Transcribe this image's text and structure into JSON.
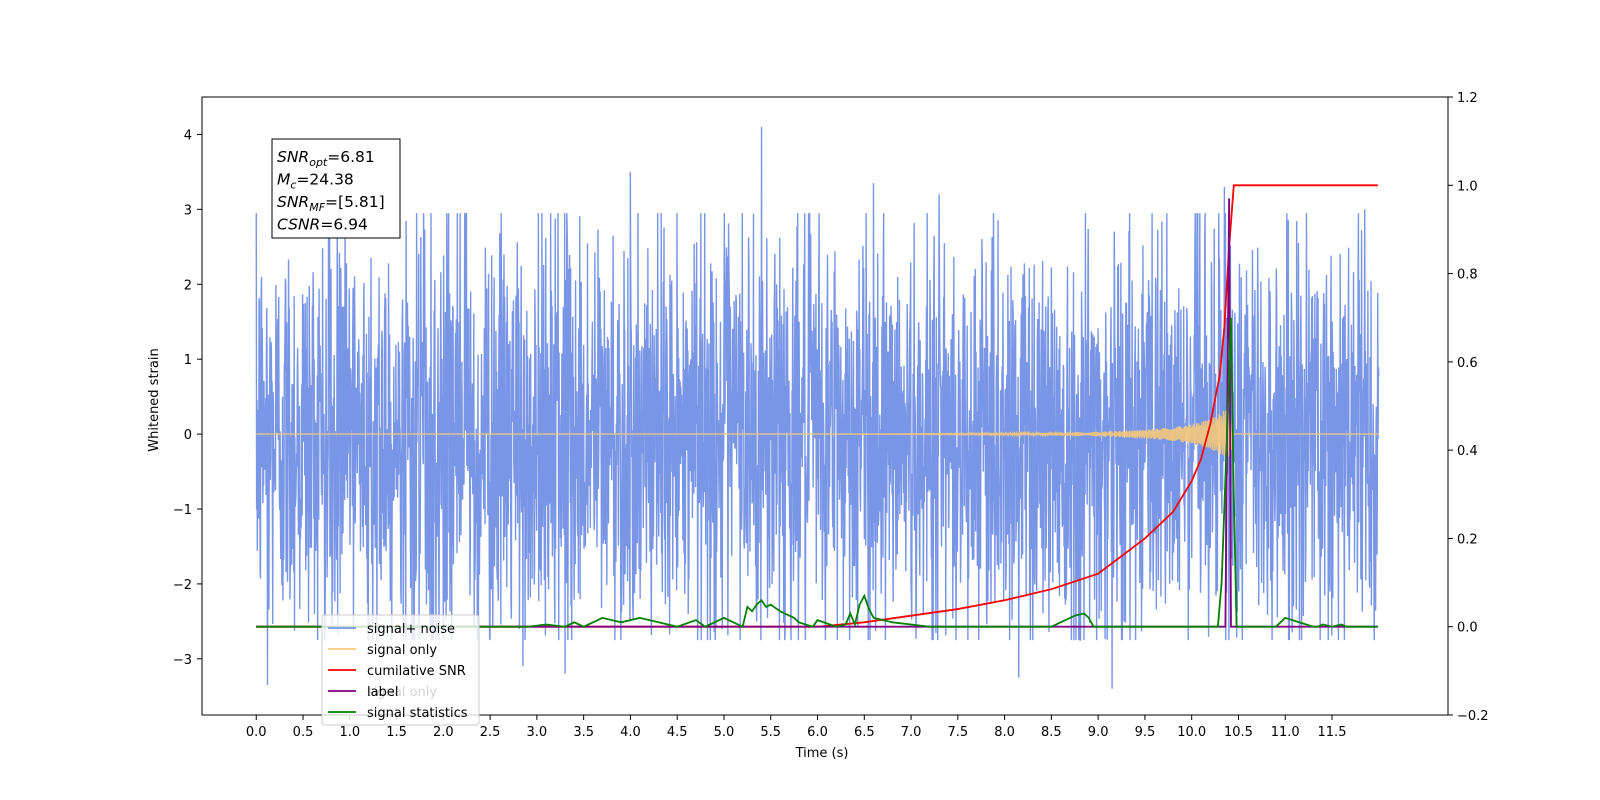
{
  "chart_data": {
    "type": "line",
    "title": "",
    "xlabel": "Time (s)",
    "ylabel_left": "Whitened strain",
    "ylabel_right": "",
    "xlim": [
      -0.58,
      12.74
    ],
    "ylim_left": [
      -3.75,
      4.5
    ],
    "ylim_right": [
      -0.2,
      1.2
    ],
    "x_ticks": [
      0.0,
      0.5,
      1.0,
      1.5,
      2.0,
      2.5,
      3.0,
      3.5,
      4.0,
      4.5,
      5.0,
      5.5,
      6.0,
      6.5,
      7.0,
      7.5,
      8.0,
      8.5,
      9.0,
      9.5,
      10.0,
      10.5,
      11.0,
      11.5
    ],
    "x_tick_labels": [
      "0.0",
      "0.5",
      "1.0",
      "1.5",
      "2.0",
      "2.5",
      "3.0",
      "3.5",
      "4.0",
      "4.5",
      "5.0",
      "5.5",
      "6.0",
      "6.5",
      "7.0",
      "7.5",
      "8.0",
      "8.5",
      "9.0",
      "9.5",
      "10.0",
      "10.5",
      "11.0",
      "11.5"
    ],
    "y_left_ticks": [
      -3,
      -2,
      -1,
      0,
      1,
      2,
      3,
      4
    ],
    "y_left_tick_labels": [
      "−3",
      "−2",
      "−1",
      "0",
      "1",
      "2",
      "3",
      "4"
    ],
    "y_right_ticks": [
      -0.2,
      0.0,
      0.2,
      0.4,
      0.6,
      0.8,
      1.0,
      1.2
    ],
    "y_right_tick_labels": [
      "−0.2",
      "0.0",
      "0.2",
      "0.4",
      "0.6",
      "0.8",
      "1.0",
      "1.2"
    ],
    "grid": false,
    "legend_position": "lower-left",
    "noise": {
      "x_range": [
        0.0,
        12.0
      ],
      "envelope_upper": 2.2,
      "envelope_lower": -2.0,
      "spikes": [
        {
          "x": 0.12,
          "y": -3.35
        },
        {
          "x": 2.85,
          "y": -3.1
        },
        {
          "x": 3.3,
          "y": -3.2
        },
        {
          "x": 4.0,
          "y": 3.5
        },
        {
          "x": 5.4,
          "y": 4.1
        },
        {
          "x": 6.6,
          "y": 3.35
        },
        {
          "x": 7.3,
          "y": 3.2
        },
        {
          "x": 8.15,
          "y": -3.25
        },
        {
          "x": 9.15,
          "y": -3.4
        },
        {
          "x": 10.35,
          "y": 3.3
        },
        {
          "x": 11.85,
          "y": 3.0
        }
      ]
    },
    "series": [
      {
        "name": "signal+ noise",
        "axis": "left",
        "color": "#7995e6",
        "values_description_free": true
      },
      {
        "name": "signal only",
        "axis": "left",
        "color": "#f5c87a",
        "envelope": {
          "x": [
            0.0,
            3.0,
            6.0,
            8.0,
            9.0,
            9.5,
            9.8,
            10.0,
            10.2,
            10.3,
            10.38,
            10.42,
            10.45
          ],
          "amplitude": [
            0.0,
            0.0,
            0.0,
            0.01,
            0.03,
            0.06,
            0.09,
            0.13,
            0.2,
            0.27,
            0.35,
            0.25,
            0.0
          ]
        }
      },
      {
        "name": "cumilative SNR",
        "axis": "right",
        "color": "#ff0000",
        "x": [
          0.0,
          6.0,
          6.5,
          7.0,
          7.5,
          8.0,
          8.5,
          9.0,
          9.5,
          9.8,
          10.0,
          10.1,
          10.2,
          10.3,
          10.35,
          10.4,
          10.45,
          11.0,
          11.5,
          11.99
        ],
        "values": [
          0.0,
          0.0,
          0.01,
          0.025,
          0.04,
          0.06,
          0.085,
          0.12,
          0.2,
          0.26,
          0.33,
          0.38,
          0.46,
          0.57,
          0.68,
          0.86,
          1.0,
          1.0,
          1.0,
          1.0
        ]
      },
      {
        "name": "label",
        "axis": "right",
        "color": "#800080",
        "x": [
          0.0,
          10.33,
          10.36,
          10.4,
          10.42,
          10.43,
          11.99
        ],
        "values": [
          0.0,
          0.0,
          0.0,
          0.97,
          0.0,
          0.0,
          0.0
        ]
      },
      {
        "name": "signal statistics",
        "axis": "right",
        "color": "#008000",
        "x": [
          0.0,
          2.5,
          2.9,
          3.1,
          3.3,
          3.4,
          3.5,
          3.7,
          3.9,
          4.1,
          4.3,
          4.5,
          4.7,
          4.8,
          5.0,
          5.1,
          5.2,
          5.25,
          5.3,
          5.35,
          5.4,
          5.45,
          5.5,
          5.6,
          5.75,
          5.8,
          5.95,
          6.0,
          6.2,
          6.3,
          6.35,
          6.4,
          6.45,
          6.5,
          6.55,
          6.6,
          6.7,
          6.8,
          7.0,
          7.2,
          7.5,
          8.5,
          8.75,
          8.85,
          8.9,
          8.95,
          9.0,
          10.28,
          10.32,
          10.38,
          10.42,
          10.45,
          10.48,
          10.52,
          10.9,
          10.95,
          11.0,
          11.3,
          11.35,
          11.4,
          11.5,
          11.6,
          11.65,
          11.99
        ],
        "values": [
          0.0,
          0.0,
          0.0,
          0.005,
          0.0,
          0.01,
          0.0,
          0.02,
          0.01,
          0.02,
          0.01,
          0.0,
          0.015,
          0.0,
          0.02,
          0.01,
          0.0,
          0.045,
          0.035,
          0.05,
          0.06,
          0.045,
          0.05,
          0.035,
          0.02,
          0.01,
          0.0,
          0.015,
          0.0,
          0.005,
          0.03,
          0.005,
          0.05,
          0.07,
          0.04,
          0.02,
          0.015,
          0.01,
          0.005,
          0.0,
          0.0,
          0.0,
          0.025,
          0.03,
          0.02,
          0.0,
          0.0,
          0.0,
          0.1,
          0.45,
          0.7,
          0.3,
          0.0,
          0.0,
          0.0,
          0.01,
          0.02,
          0.0,
          0.0,
          0.005,
          0.0,
          0.005,
          0.0,
          0.0
        ]
      }
    ],
    "info_box": [
      {
        "base": "SNR",
        "sub": "opt",
        "value": "=6.81"
      },
      {
        "base": "M",
        "sub": "c",
        "value": "=24.38"
      },
      {
        "base": "SNR",
        "sub": "MF",
        "value": "=[5.81]"
      },
      {
        "base": "CSNR",
        "sub": "",
        "value": "=6.94"
      }
    ],
    "legend": [
      {
        "label": "signal+ noise",
        "color": "#7995e6"
      },
      {
        "label": "signal only",
        "color": "#f5c87a"
      },
      {
        "label": "cumilative SNR",
        "color": "#ff0000"
      },
      {
        "label": "label",
        "color": "#800080"
      },
      {
        "label": "signal statistics",
        "color": "#008000"
      }
    ],
    "legend_overlap_text": "signal only"
  }
}
